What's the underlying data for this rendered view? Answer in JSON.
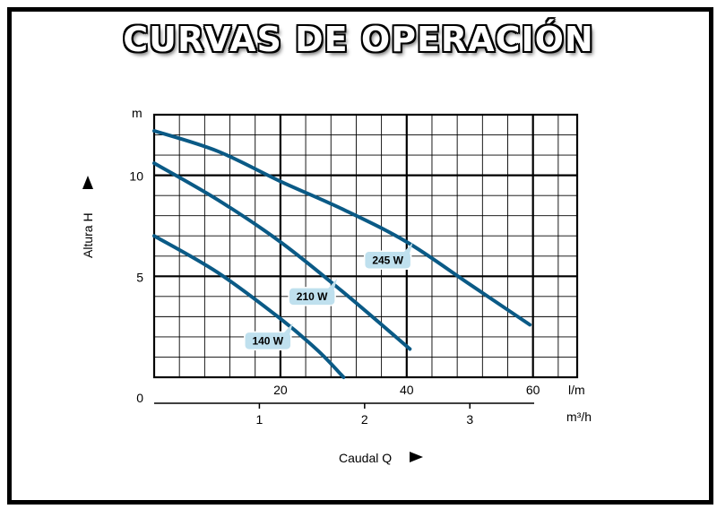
{
  "title": "CURVAS DE OPERACIÓN",
  "chart_data": {
    "type": "line",
    "y_unit": "m",
    "x_unit": "l/m",
    "x2_unit": "m³/h",
    "ylabel": "Altura  H",
    "xlabel": "Caudal  Q",
    "y_ticks": [
      "0",
      "5",
      "10"
    ],
    "x_ticks": [
      "20",
      "40",
      "60"
    ],
    "x2_ticks": [
      "1",
      "2",
      "3"
    ],
    "xlim": [
      0,
      67
    ],
    "ylim": [
      0,
      13
    ],
    "x2_scale_lpm_per_m3h": 16.6667,
    "line_color": "#0a5a86",
    "tag_color": "#bfe0ee",
    "series": [
      {
        "name": "245 W",
        "x": [
          0,
          10,
          20,
          30,
          40,
          50,
          59.5
        ],
        "y": [
          12.2,
          11.2,
          9.7,
          8.3,
          6.7,
          4.6,
          2.6
        ]
      },
      {
        "name": "210 W",
        "x": [
          0,
          10,
          20,
          30,
          40.5
        ],
        "y": [
          10.6,
          8.8,
          6.7,
          4.2,
          1.4
        ]
      },
      {
        "name": "140 W",
        "x": [
          0,
          10,
          20,
          26,
          30
        ],
        "y": [
          7.0,
          5.2,
          2.9,
          1.3,
          0
        ]
      }
    ]
  }
}
